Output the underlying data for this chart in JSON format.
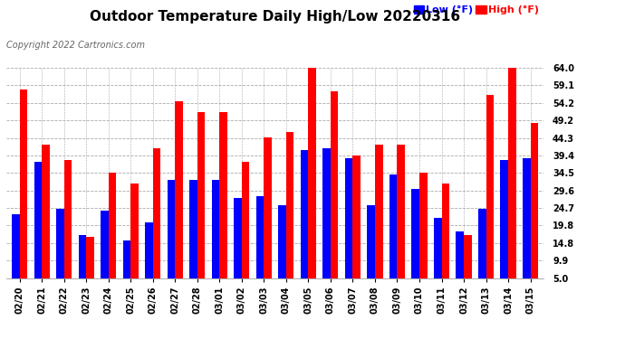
{
  "title": "Outdoor Temperature Daily High/Low 20220316",
  "copyright": "Copyright 2022 Cartronics.com",
  "legend_low": "Low",
  "legend_high": "High",
  "legend_unit": "(°F)",
  "ylim": [
    5.0,
    64.0
  ],
  "yticks": [
    5.0,
    9.9,
    14.8,
    19.8,
    24.7,
    29.6,
    34.5,
    39.4,
    44.3,
    49.2,
    54.2,
    59.1,
    64.0
  ],
  "dates": [
    "02/20",
    "02/21",
    "02/22",
    "02/23",
    "02/24",
    "02/25",
    "02/26",
    "02/27",
    "02/28",
    "03/01",
    "03/02",
    "03/03",
    "03/04",
    "03/05",
    "03/06",
    "03/07",
    "03/08",
    "03/09",
    "03/10",
    "03/11",
    "03/12",
    "03/13",
    "03/14",
    "03/15"
  ],
  "highs": [
    53.0,
    37.5,
    33.0,
    11.5,
    29.5,
    26.5,
    36.5,
    49.5,
    46.5,
    46.5,
    32.5,
    39.5,
    41.0,
    64.0,
    52.5,
    34.5,
    37.5,
    37.5,
    29.5,
    26.5,
    12.0,
    51.5,
    61.0,
    43.5
  ],
  "lows": [
    18.0,
    32.5,
    19.5,
    12.0,
    19.0,
    10.5,
    15.5,
    27.5,
    27.5,
    27.5,
    22.5,
    23.0,
    20.5,
    36.0,
    36.5,
    33.5,
    20.5,
    29.0,
    25.0,
    17.0,
    13.0,
    19.5,
    33.0,
    33.5
  ],
  "bar_color_high": "#ff0000",
  "bar_color_low": "#0000ff",
  "bg_color": "#ffffff",
  "grid_color": "#aaaaaa",
  "title_fontsize": 11,
  "tick_fontsize": 7,
  "copyright_fontsize": 7,
  "legend_fontsize": 8
}
